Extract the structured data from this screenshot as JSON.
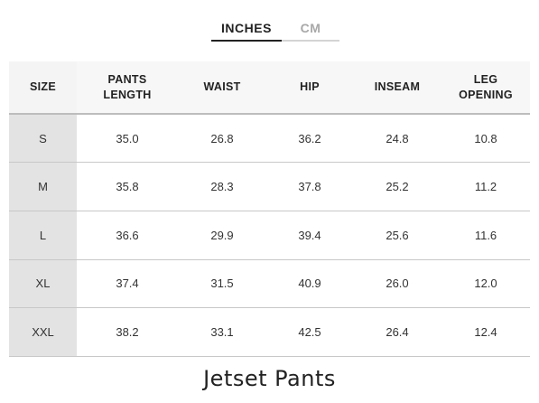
{
  "unit_tabs": {
    "active": "INCHES",
    "inactive": "CM"
  },
  "table": {
    "headers": [
      "SIZE",
      "PANTS\nLENGTH",
      "WAIST",
      "HIP",
      "INSEAM",
      "LEG\nOPENING"
    ],
    "header_lines": [
      [
        "SIZE"
      ],
      [
        "PANTS",
        "LENGTH"
      ],
      [
        "WAIST"
      ],
      [
        "HIP"
      ],
      [
        "INSEAM"
      ],
      [
        "LEG",
        "OPENING"
      ]
    ],
    "rows": [
      [
        "S",
        "35.0",
        "26.8",
        "36.2",
        "24.8",
        "10.8"
      ],
      [
        "M",
        "35.8",
        "28.3",
        "37.8",
        "25.2",
        "11.2"
      ],
      [
        "L",
        "36.6",
        "29.9",
        "39.4",
        "25.6",
        "11.6"
      ],
      [
        "XL",
        "37.4",
        "31.5",
        "40.9",
        "26.0",
        "12.0"
      ],
      [
        "XXL",
        "38.2",
        "33.1",
        "42.5",
        "26.4",
        "12.4"
      ]
    ]
  },
  "product": {
    "title": "Jetset Pants"
  }
}
